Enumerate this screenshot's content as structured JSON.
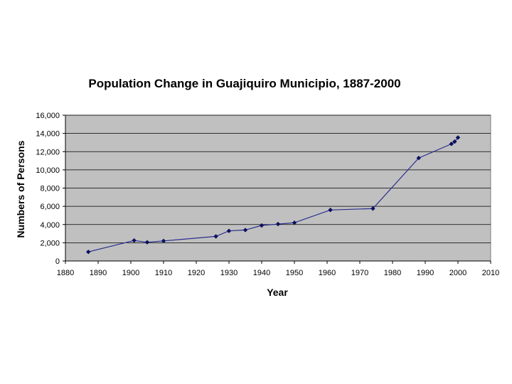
{
  "chart_data": {
    "type": "line",
    "title": "Population Change in Guajiquiro Municipio, 1887-2000",
    "xlabel": "Year",
    "ylabel": "Numbers of Persons",
    "xlim": [
      1880,
      2010
    ],
    "ylim": [
      0,
      16000
    ],
    "x_ticks": [
      "1880",
      "1890",
      "1900",
      "1910",
      "1920",
      "1930",
      "1940",
      "1950",
      "1960",
      "1970",
      "1980",
      "1990",
      "2000",
      "2010"
    ],
    "y_ticks": [
      "0",
      "2,000",
      "4,000",
      "6,000",
      "8,000",
      "10,000",
      "12,000",
      "14,000",
      "16,000"
    ],
    "grid": true,
    "legend": "none",
    "series": [
      {
        "x": [
          1887,
          1901,
          1905,
          1910,
          1926,
          1930,
          1935,
          1940,
          1945,
          1950,
          1961,
          1974,
          1988,
          1998,
          1999,
          2000
        ],
        "y": [
          1000,
          2250,
          2050,
          2200,
          2700,
          3300,
          3400,
          3900,
          4050,
          4200,
          5600,
          5750,
          11300,
          12850,
          13100,
          13550
        ]
      }
    ],
    "colors": {
      "plot_background": "#c0c0c0",
      "grid": "#000000",
      "line": "#2b2f8f",
      "marker": "#0b1060"
    }
  }
}
